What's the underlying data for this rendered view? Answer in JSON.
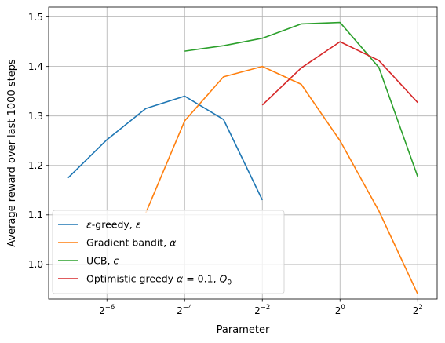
{
  "chart_data": {
    "type": "line",
    "title": "",
    "xlabel": "Parameter",
    "ylabel": "Average reward over last 1000 steps",
    "x_scale": "log2",
    "xlim_exp": [
      -7.5,
      2.5
    ],
    "ylim": [
      0.93,
      1.52
    ],
    "grid": true,
    "legend_position": "lower-left",
    "x_ticks": [
      {
        "exp": -6,
        "base": "2",
        "power": "−6"
      },
      {
        "exp": -4,
        "base": "2",
        "power": "−4"
      },
      {
        "exp": -2,
        "base": "2",
        "power": "−2"
      },
      {
        "exp": 0,
        "base": "2",
        "power": "0"
      },
      {
        "exp": 2,
        "base": "2",
        "power": "2"
      }
    ],
    "y_ticks": [
      {
        "value": 1.0,
        "label": "1.0"
      },
      {
        "value": 1.1,
        "label": "1.1"
      },
      {
        "value": 1.2,
        "label": "1.2"
      },
      {
        "value": 1.3,
        "label": "1.3"
      },
      {
        "value": 1.4,
        "label": "1.4"
      },
      {
        "value": 1.5,
        "label": "1.5"
      }
    ],
    "series": [
      {
        "key": "epsilon-greedy",
        "legend": {
          "parts": [
            {
              "t": "ε",
              "italic": true
            },
            {
              "t": "-greedy, ",
              "italic": false
            },
            {
              "t": "ε",
              "italic": true
            }
          ]
        },
        "color": "#1f77b4",
        "points": [
          [
            -7,
            1.175
          ],
          [
            -6,
            1.252
          ],
          [
            -5,
            1.315
          ],
          [
            -4,
            1.34
          ],
          [
            -3,
            1.293
          ],
          [
            -2,
            1.13
          ]
        ]
      },
      {
        "key": "gradient-bandit",
        "legend": {
          "parts": [
            {
              "t": "Gradient bandit, ",
              "italic": false
            },
            {
              "t": "α",
              "italic": true
            }
          ]
        },
        "color": "#ff7f0e",
        "points": [
          [
            -5,
            1.104
          ],
          [
            -4,
            1.29
          ],
          [
            -3,
            1.379
          ],
          [
            -2,
            1.4
          ],
          [
            -1,
            1.364
          ],
          [
            0,
            1.25
          ],
          [
            1,
            1.108
          ],
          [
            2,
            0.94
          ]
        ]
      },
      {
        "key": "ucb",
        "legend": {
          "parts": [
            {
              "t": "UCB, ",
              "italic": false
            },
            {
              "t": "c",
              "italic": true
            }
          ]
        },
        "color": "#2ca02c",
        "points": [
          [
            -4,
            1.431
          ],
          [
            -3,
            1.442
          ],
          [
            -2,
            1.457
          ],
          [
            -1,
            1.486
          ],
          [
            0,
            1.489
          ],
          [
            1,
            1.398
          ],
          [
            2,
            1.177
          ]
        ]
      },
      {
        "key": "optimistic-greedy",
        "legend": {
          "parts": [
            {
              "t": "Optimistic greedy ",
              "italic": false
            },
            {
              "t": "α",
              "italic": true
            },
            {
              "t": " = 0.1, ",
              "italic": false
            },
            {
              "t": "Q",
              "italic": true
            },
            {
              "t": "0",
              "italic": false,
              "sub": true
            }
          ]
        },
        "color": "#d62728",
        "points": [
          [
            -2,
            1.322
          ],
          [
            -1,
            1.397
          ],
          [
            0,
            1.45
          ],
          [
            1,
            1.412
          ],
          [
            2,
            1.327
          ]
        ]
      }
    ]
  }
}
